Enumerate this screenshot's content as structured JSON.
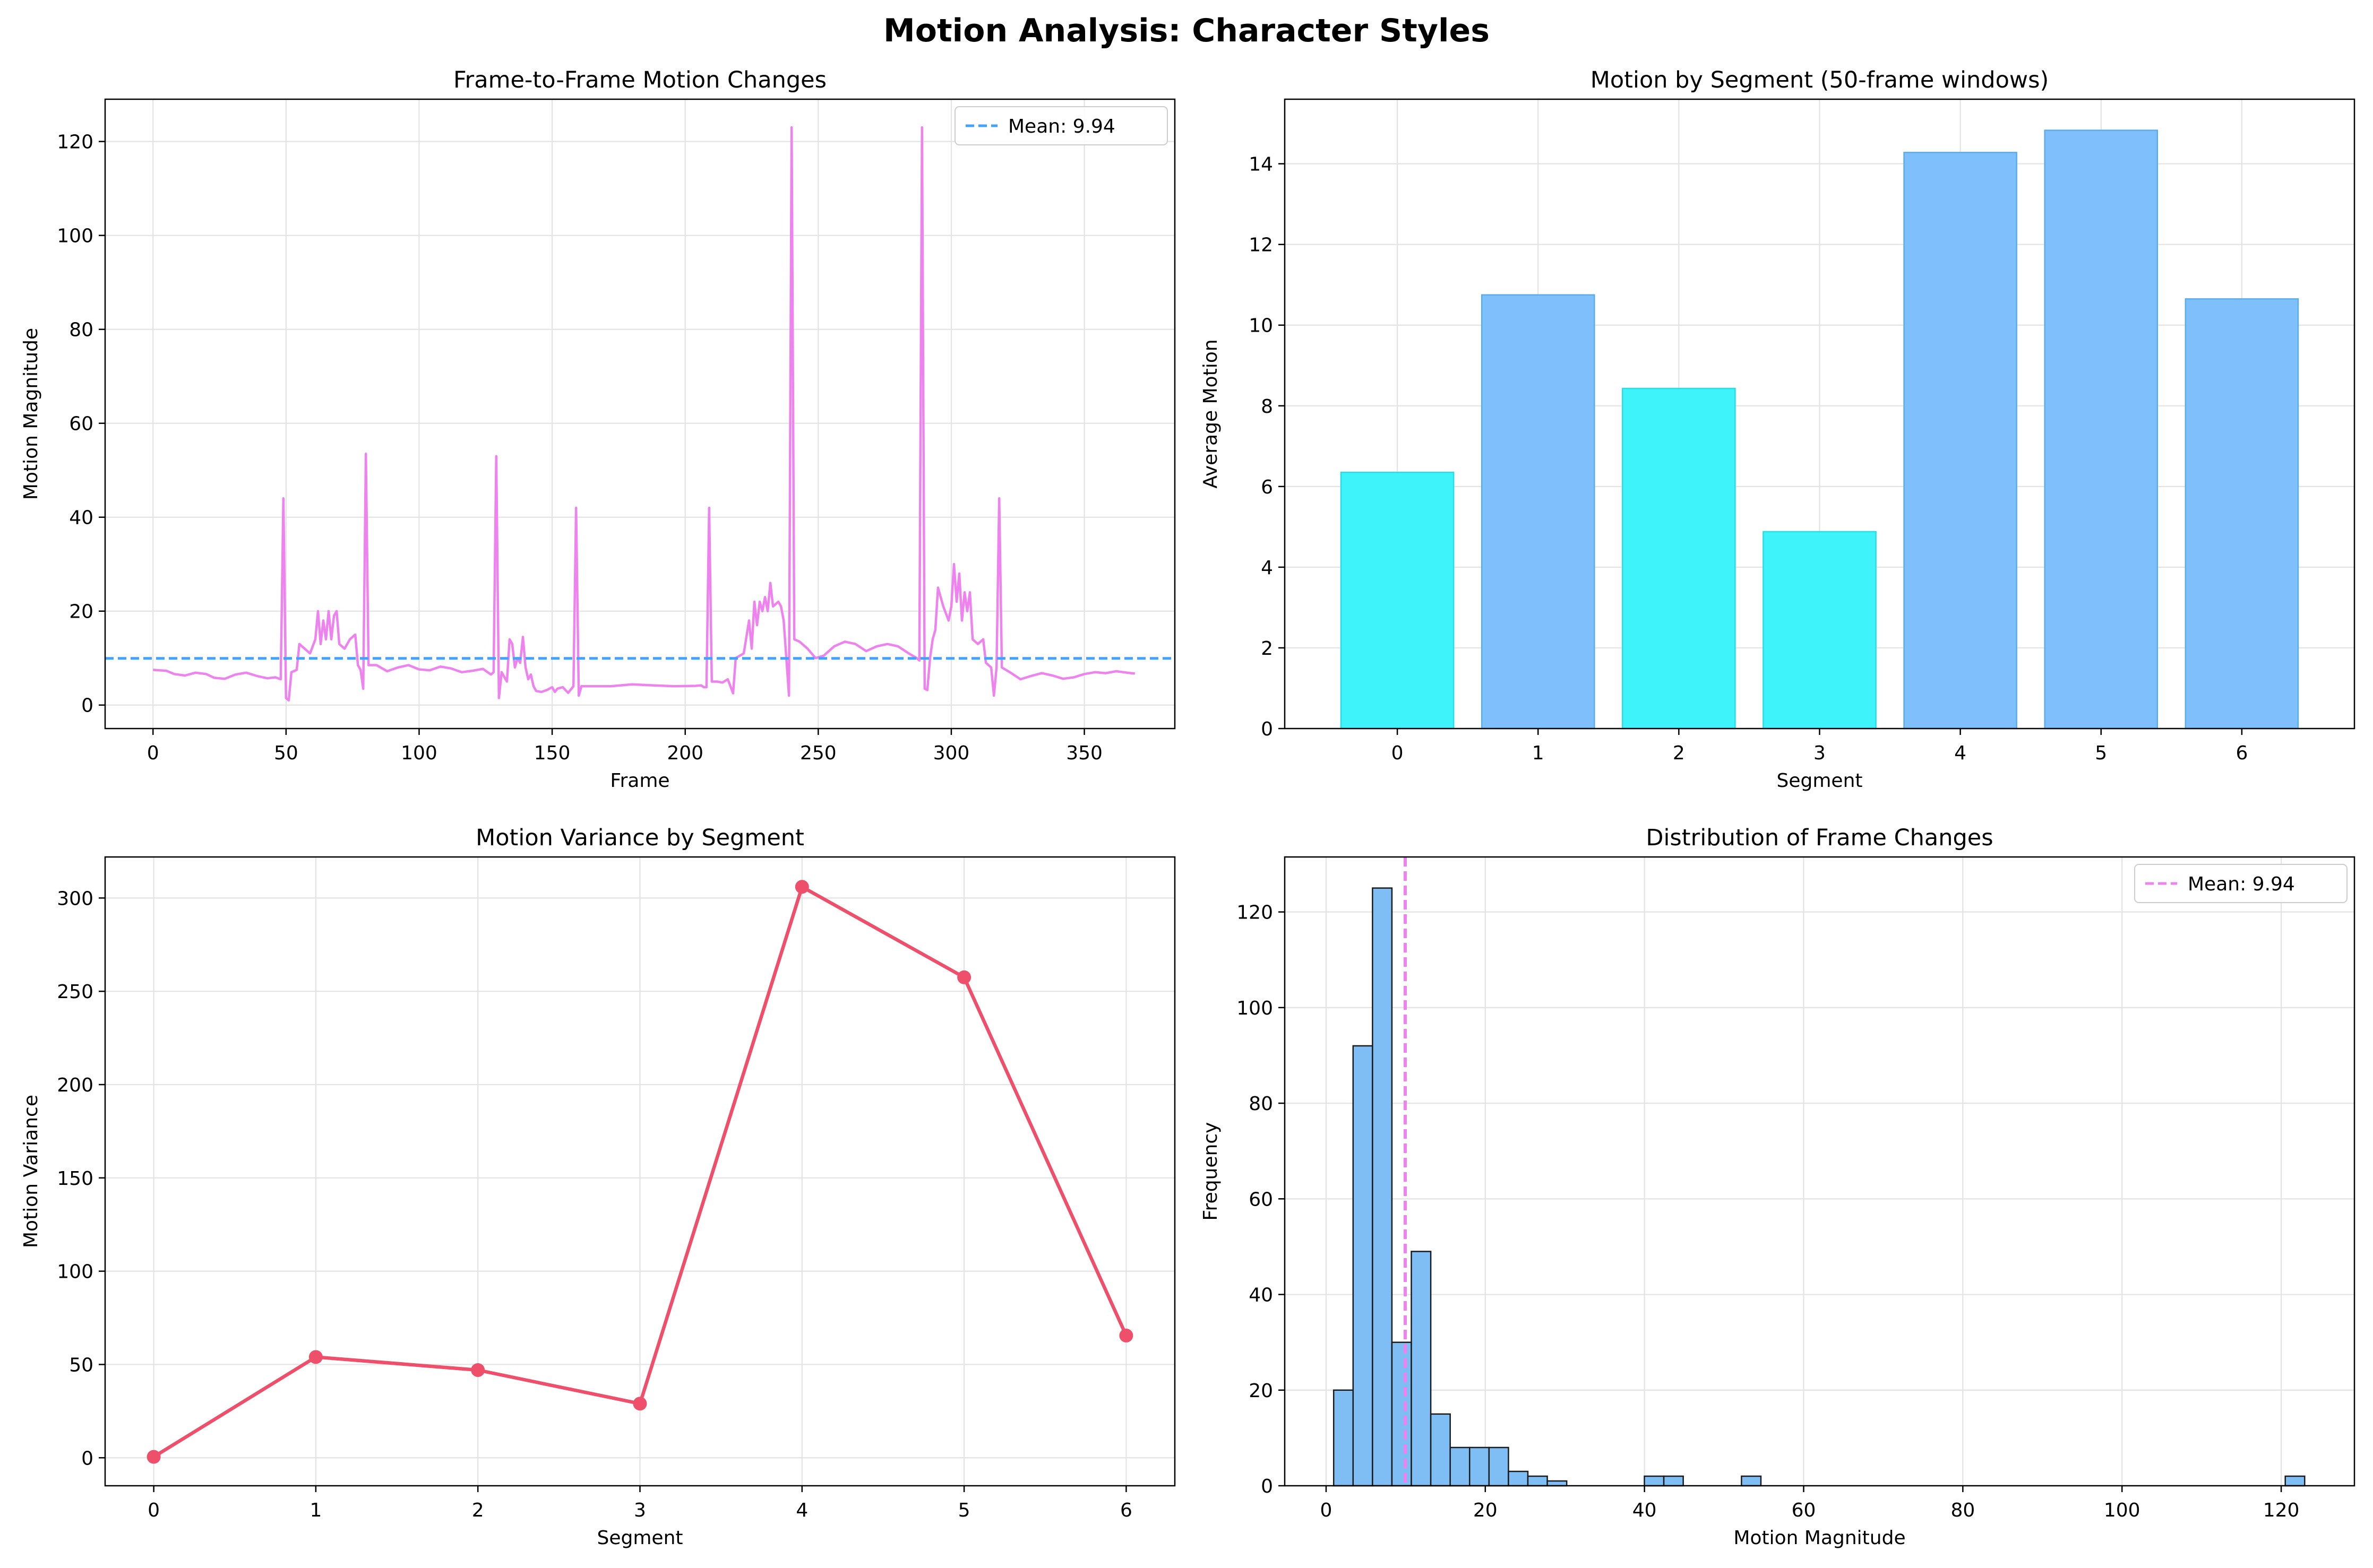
{
  "suptitle": "Motion Analysis: Character Styles",
  "colors": {
    "motion_line": "#EE82EE",
    "mean_line_blue": "#3FA4FF",
    "bar_high": "#7FC0FC",
    "bar_high_edge": "#5AAEE8",
    "bar_low": "#3FF3FB",
    "bar_low_edge": "#27DDE8",
    "variance_line": "#EE4F6A",
    "hist_fill": "#7FBEF5",
    "hist_edge": "#1a1a1a",
    "mean_line_pink": "#EE82EE",
    "grid": "#e3e3e3"
  },
  "chart_data": [
    {
      "type": "line",
      "title": "Frame-to-Frame Motion Changes",
      "xlabel": "Frame",
      "ylabel": "Motion Magnitude",
      "xlim": [
        -18,
        384
      ],
      "ylim": [
        -5,
        129
      ],
      "xticks": [
        0,
        50,
        100,
        150,
        200,
        250,
        300,
        350
      ],
      "yticks": [
        0,
        20,
        40,
        60,
        80,
        100,
        120
      ],
      "grid": true,
      "legend": "top-right",
      "series": [
        {
          "points": [
            [
              0,
              7.5
            ],
            [
              5,
              7.3
            ],
            [
              8,
              6.6
            ],
            [
              12,
              6.3
            ],
            [
              16,
              6.9
            ],
            [
              20,
              6.6
            ],
            [
              23,
              5.8
            ],
            [
              27,
              5.6
            ],
            [
              31,
              6.5
            ],
            [
              35,
              6.9
            ],
            [
              39,
              6.2
            ],
            [
              43,
              5.7
            ],
            [
              46,
              5.9
            ],
            [
              48,
              5.5
            ],
            [
              49,
              44
            ],
            [
              50,
              1.5
            ],
            [
              51,
              1
            ],
            [
              52,
              7
            ],
            [
              54,
              7.5
            ],
            [
              55,
              13
            ],
            [
              57,
              12
            ],
            [
              59,
              11
            ],
            [
              61,
              14
            ],
            [
              62,
              20
            ],
            [
              63,
              13
            ],
            [
              64,
              18
            ],
            [
              65,
              14
            ],
            [
              66,
              20
            ],
            [
              67,
              14
            ],
            [
              68,
              19
            ],
            [
              69,
              20
            ],
            [
              70,
              13
            ],
            [
              72,
              12
            ],
            [
              74,
              14
            ],
            [
              76,
              15
            ],
            [
              77,
              8.5
            ],
            [
              78,
              7.5
            ],
            [
              79,
              3.5
            ],
            [
              80,
              53.5
            ],
            [
              81,
              8.5
            ],
            [
              84,
              8.5
            ],
            [
              88,
              7.2
            ],
            [
              92,
              8
            ],
            [
              96,
              8.5
            ],
            [
              100,
              7.6
            ],
            [
              104,
              7.4
            ],
            [
              108,
              8.2
            ],
            [
              112,
              7.8
            ],
            [
              116,
              7
            ],
            [
              120,
              7.3
            ],
            [
              124,
              7.7
            ],
            [
              127,
              6.5
            ],
            [
              128,
              7
            ],
            [
              129,
              53
            ],
            [
              130,
              1.5
            ],
            [
              131,
              7
            ],
            [
              133,
              5
            ],
            [
              134,
              14
            ],
            [
              135,
              13
            ],
            [
              136,
              8
            ],
            [
              137,
              10
            ],
            [
              138,
              9
            ],
            [
              139,
              14.5
            ],
            [
              140,
              8
            ],
            [
              141,
              5.5
            ],
            [
              142,
              6.5
            ],
            [
              143,
              4
            ],
            [
              144,
              3
            ],
            [
              146,
              2.8
            ],
            [
              148,
              3.2
            ],
            [
              150,
              3.8
            ],
            [
              151,
              2.8
            ],
            [
              152,
              3.5
            ],
            [
              154,
              3.8
            ],
            [
              156,
              2.6
            ],
            [
              158,
              4
            ],
            [
              159,
              42
            ],
            [
              160,
              2
            ],
            [
              161,
              4
            ],
            [
              165,
              4
            ],
            [
              172,
              4
            ],
            [
              180,
              4.4
            ],
            [
              188,
              4.2
            ],
            [
              196,
              4
            ],
            [
              204,
              4.1
            ],
            [
              206,
              4.2
            ],
            [
              207,
              3.8
            ],
            [
              208,
              3.8
            ],
            [
              209,
              42
            ],
            [
              210,
              5
            ],
            [
              212,
              5
            ],
            [
              214,
              4.8
            ],
            [
              216,
              5.5
            ],
            [
              218,
              2.5
            ],
            [
              219,
              10
            ],
            [
              222,
              11
            ],
            [
              224,
              18
            ],
            [
              225,
              12
            ],
            [
              226,
              22
            ],
            [
              227,
              17
            ],
            [
              228,
              22
            ],
            [
              229,
              20
            ],
            [
              230,
              23
            ],
            [
              231,
              20
            ],
            [
              232,
              26
            ],
            [
              233,
              21
            ],
            [
              235,
              22
            ],
            [
              236,
              21
            ],
            [
              237,
              18
            ],
            [
              238,
              10
            ],
            [
              239,
              2
            ],
            [
              240,
              123
            ],
            [
              241,
              14
            ],
            [
              243,
              13.5
            ],
            [
              246,
              12
            ],
            [
              249,
              10
            ],
            [
              252,
              10.5
            ],
            [
              256,
              12.5
            ],
            [
              260,
              13.5
            ],
            [
              264,
              13
            ],
            [
              268,
              11.5
            ],
            [
              272,
              12.5
            ],
            [
              276,
              13
            ],
            [
              280,
              12.5
            ],
            [
              284,
              11
            ],
            [
              287,
              10
            ],
            [
              288,
              9.5
            ],
            [
              289,
              123
            ],
            [
              290,
              3.5
            ],
            [
              291,
              3.2
            ],
            [
              292,
              10
            ],
            [
              293,
              14
            ],
            [
              294,
              16
            ],
            [
              295,
              25
            ],
            [
              297,
              21
            ],
            [
              299,
              18
            ],
            [
              300,
              21
            ],
            [
              301,
              30
            ],
            [
              302,
              22
            ],
            [
              303,
              28
            ],
            [
              304,
              18
            ],
            [
              305,
              24
            ],
            [
              306,
              20
            ],
            [
              307,
              24
            ],
            [
              308,
              14
            ],
            [
              310,
              13
            ],
            [
              312,
              14
            ],
            [
              313,
              9
            ],
            [
              315,
              8
            ],
            [
              316,
              2
            ],
            [
              317,
              8
            ],
            [
              318,
              44
            ],
            [
              319,
              8
            ],
            [
              322,
              7
            ],
            [
              326,
              5.5
            ],
            [
              330,
              6.2
            ],
            [
              334,
              6.8
            ],
            [
              338,
              6.3
            ],
            [
              342,
              5.6
            ],
            [
              346,
              5.9
            ],
            [
              350,
              6.6
            ],
            [
              354,
              7
            ],
            [
              358,
              6.8
            ],
            [
              362,
              7.2
            ],
            [
              366,
              6.9
            ],
            [
              369,
              6.7
            ]
          ]
        }
      ],
      "mean_line": {
        "value": 9.94,
        "label": "Mean: 9.94"
      }
    },
    {
      "type": "bar",
      "title": "Motion by Segment (50-frame windows)",
      "xlabel": "Segment",
      "ylabel": "Average Motion",
      "categories": [
        "0",
        "1",
        "2",
        "3",
        "4",
        "5",
        "6"
      ],
      "values": [
        6.35,
        10.75,
        8.43,
        4.88,
        14.28,
        14.83,
        10.65
      ],
      "highlight": [
        "low",
        "high",
        "low",
        "low",
        "high",
        "high",
        "high"
      ],
      "xlim": [
        -0.8,
        6.8
      ],
      "ylim": [
        0,
        15.6
      ],
      "yticks": [
        0,
        2,
        4,
        6,
        8,
        10,
        12,
        14
      ],
      "grid": true
    },
    {
      "type": "line",
      "title": "Motion Variance by Segment",
      "xlabel": "Segment",
      "ylabel": "Motion Variance",
      "x": [
        0,
        1,
        2,
        3,
        4,
        5,
        6
      ],
      "values": [
        0.5,
        54,
        47,
        29,
        306,
        257.5,
        65.5
      ],
      "xlim": [
        -0.3,
        6.3
      ],
      "ylim": [
        -15,
        322
      ],
      "xticks": [
        0,
        1,
        2,
        3,
        4,
        5,
        6
      ],
      "yticks": [
        0,
        50,
        100,
        150,
        200,
        250,
        300
      ],
      "grid": true
    },
    {
      "type": "bar",
      "title": "Distribution of Frame Changes",
      "xlabel": "Motion Magnitude",
      "ylabel": "Frequency",
      "bin_start": 0.95,
      "bin_width": 2.44,
      "counts": [
        20,
        92,
        125,
        30,
        49,
        15,
        8,
        8,
        8,
        3,
        2,
        1,
        0,
        0,
        0,
        0,
        2,
        2,
        0,
        0,
        0,
        2,
        0,
        0,
        0,
        0,
        0,
        0,
        0,
        0,
        0,
        0,
        0,
        0,
        0,
        0,
        0,
        0,
        0,
        0,
        0,
        0,
        0,
        0,
        0,
        0,
        0,
        0,
        0,
        2
      ],
      "xlim": [
        -5.2,
        129.2
      ],
      "ylim": [
        0,
        131.5
      ],
      "xticks": [
        0,
        20,
        40,
        60,
        80,
        100,
        120
      ],
      "yticks": [
        0,
        20,
        40,
        60,
        80,
        100,
        120
      ],
      "grid": true,
      "legend": "top-right",
      "mean_line": {
        "value": 9.94,
        "label": "Mean: 9.94"
      }
    }
  ]
}
